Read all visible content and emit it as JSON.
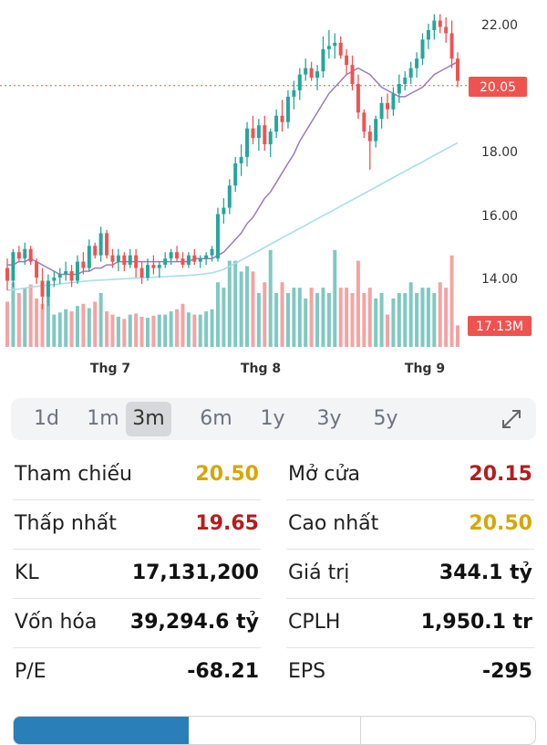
{
  "chart_data": {
    "type": "candlestick",
    "y_axis_ticks": [
      "22.00",
      "20.00",
      "18.00",
      "16.00",
      "14.00"
    ],
    "x_axis_labels": [
      "Thg 7",
      "Thg 8",
      "Thg 9"
    ],
    "ylim": [
      12.2,
      22.6
    ],
    "current_price": 20.05,
    "current_price_label": "20.05",
    "volume_label": "17.13M",
    "ohlc": [
      [
        14.3,
        14.6,
        13.6,
        13.9
      ],
      [
        13.9,
        14.9,
        13.7,
        14.8
      ],
      [
        14.8,
        15.0,
        14.5,
        14.6
      ],
      [
        14.6,
        15.1,
        14.4,
        14.9
      ],
      [
        14.9,
        15.0,
        14.4,
        14.5
      ],
      [
        14.5,
        14.6,
        13.8,
        14.0
      ],
      [
        13.9,
        14.3,
        13.0,
        13.4
      ],
      [
        13.4,
        14.1,
        13.1,
        13.9
      ],
      [
        13.9,
        14.2,
        13.7,
        14.0
      ],
      [
        14.0,
        14.3,
        13.8,
        14.1
      ],
      [
        14.1,
        14.5,
        13.9,
        14.2
      ],
      [
        14.2,
        14.4,
        13.7,
        13.9
      ],
      [
        13.9,
        14.7,
        13.8,
        14.5
      ],
      [
        14.5,
        14.8,
        14.1,
        14.3
      ],
      [
        14.3,
        15.2,
        14.2,
        15.0
      ],
      [
        15.0,
        15.1,
        14.6,
        14.7
      ],
      [
        14.7,
        15.6,
        14.5,
        15.4
      ],
      [
        15.4,
        15.5,
        14.6,
        14.7
      ],
      [
        14.7,
        14.9,
        14.3,
        14.5
      ],
      [
        14.5,
        14.9,
        14.2,
        14.7
      ],
      [
        14.7,
        14.8,
        14.2,
        14.4
      ],
      [
        14.4,
        14.9,
        14.3,
        14.7
      ],
      [
        14.7,
        14.9,
        14.0,
        14.3
      ],
      [
        14.3,
        14.5,
        13.8,
        14.0
      ],
      [
        14.0,
        14.6,
        13.9,
        14.4
      ],
      [
        14.4,
        14.7,
        14.1,
        14.3
      ],
      [
        14.3,
        14.5,
        14.0,
        14.4
      ],
      [
        14.4,
        14.8,
        14.3,
        14.6
      ],
      [
        14.6,
        14.9,
        14.4,
        14.8
      ],
      [
        14.8,
        15.0,
        14.5,
        14.6
      ],
      [
        14.6,
        14.8,
        14.3,
        14.4
      ],
      [
        14.4,
        14.8,
        14.3,
        14.7
      ],
      [
        14.7,
        14.9,
        14.4,
        14.5
      ],
      [
        14.5,
        14.7,
        14.3,
        14.6
      ],
      [
        14.6,
        14.8,
        14.4,
        14.7
      ],
      [
        14.7,
        15.0,
        14.5,
        14.9
      ],
      [
        14.6,
        16.2,
        14.5,
        16.0
      ],
      [
        16.0,
        16.5,
        15.7,
        16.2
      ],
      [
        16.2,
        17.1,
        16.0,
        16.9
      ],
      [
        16.9,
        17.8,
        16.7,
        17.6
      ],
      [
        17.6,
        18.2,
        17.2,
        17.8
      ],
      [
        17.8,
        18.9,
        17.5,
        18.7
      ],
      [
        18.7,
        19.1,
        18.2,
        18.4
      ],
      [
        18.4,
        19.0,
        18.0,
        18.8
      ],
      [
        18.8,
        19.1,
        18.0,
        18.2
      ],
      [
        18.2,
        18.7,
        17.8,
        18.6
      ],
      [
        18.6,
        19.3,
        18.4,
        19.1
      ],
      [
        19.1,
        19.6,
        18.6,
        18.9
      ],
      [
        18.9,
        19.9,
        18.7,
        19.7
      ],
      [
        19.7,
        20.2,
        19.3,
        19.9
      ],
      [
        19.9,
        20.6,
        19.6,
        20.4
      ],
      [
        20.4,
        20.9,
        20.2,
        20.6
      ],
      [
        20.6,
        20.8,
        20.2,
        20.3
      ],
      [
        20.3,
        20.7,
        19.9,
        20.5
      ],
      [
        20.5,
        21.6,
        20.3,
        21.2
      ],
      [
        21.2,
        21.8,
        20.9,
        21.3
      ],
      [
        21.3,
        21.7,
        20.9,
        21.4
      ],
      [
        21.4,
        21.6,
        20.9,
        21.0
      ],
      [
        21.0,
        21.2,
        20.4,
        20.7
      ],
      [
        20.7,
        21.0,
        19.9,
        20.1
      ],
      [
        20.1,
        20.4,
        19.0,
        19.2
      ],
      [
        19.2,
        19.3,
        18.4,
        18.6
      ],
      [
        18.6,
        18.8,
        17.4,
        18.3
      ],
      [
        18.3,
        19.1,
        18.1,
        19.0
      ],
      [
        19.0,
        19.7,
        18.7,
        19.5
      ],
      [
        19.5,
        19.8,
        19.0,
        19.3
      ],
      [
        19.3,
        20.0,
        19.1,
        19.8
      ],
      [
        19.8,
        20.4,
        19.5,
        20.1
      ],
      [
        20.1,
        20.5,
        19.9,
        20.3
      ],
      [
        20.3,
        20.8,
        20.1,
        20.6
      ],
      [
        20.6,
        21.1,
        20.3,
        20.9
      ],
      [
        20.9,
        21.7,
        20.7,
        21.5
      ],
      [
        21.5,
        22.0,
        21.2,
        21.8
      ],
      [
        21.8,
        22.3,
        21.5,
        22.1
      ],
      [
        22.1,
        22.3,
        21.7,
        21.9
      ],
      [
        21.9,
        22.2,
        21.4,
        21.7
      ],
      [
        21.7,
        22.1,
        20.6,
        20.9
      ],
      [
        20.9,
        21.1,
        20.0,
        20.2
      ]
    ],
    "volume_mm": [
      0.42,
      0.6,
      0.5,
      0.55,
      0.58,
      0.45,
      0.4,
      0.52,
      0.3,
      0.32,
      0.35,
      0.33,
      0.38,
      0.4,
      0.36,
      0.42,
      0.5,
      0.33,
      0.3,
      0.28,
      0.26,
      0.3,
      0.31,
      0.28,
      0.27,
      0.29,
      0.3,
      0.3,
      0.33,
      0.35,
      0.4,
      0.32,
      0.3,
      0.3,
      0.33,
      0.35,
      0.6,
      0.55,
      0.8,
      0.8,
      0.7,
      0.75,
      0.7,
      0.5,
      0.6,
      0.9,
      0.5,
      0.6,
      0.5,
      0.55,
      0.55,
      0.45,
      0.55,
      0.5,
      0.55,
      0.5,
      0.9,
      0.55,
      0.55,
      0.5,
      0.8,
      0.5,
      0.55,
      0.45,
      0.5,
      0.3,
      0.45,
      0.5,
      0.5,
      0.6,
      0.5,
      0.55,
      0.55,
      0.5,
      0.6,
      0.55,
      0.85,
      0.2
    ],
    "ma20": [
      14.4,
      14.4,
      14.5,
      14.5,
      14.6,
      14.5,
      14.4,
      14.3,
      14.2,
      14.1,
      14.1,
      14.1,
      14.1,
      14.2,
      14.2,
      14.3,
      14.3,
      14.4,
      14.4,
      14.5,
      14.5,
      14.5,
      14.5,
      14.5,
      14.5,
      14.5,
      14.5,
      14.5,
      14.5,
      14.5,
      14.5,
      14.5,
      14.6,
      14.6,
      14.6,
      14.6,
      14.7,
      14.8,
      15.0,
      15.2,
      15.4,
      15.7,
      15.9,
      16.2,
      16.5,
      16.7,
      17.0,
      17.3,
      17.6,
      17.9,
      18.3,
      18.6,
      18.9,
      19.2,
      19.5,
      19.8,
      20.0,
      20.2,
      20.4,
      20.5,
      20.6,
      20.5,
      20.4,
      20.2,
      20.0,
      19.9,
      19.8,
      19.7,
      19.7,
      19.8,
      19.9,
      20.0,
      20.2,
      20.4,
      20.5,
      20.6,
      20.7,
      20.8
    ],
    "ma50": [
      13.6,
      13.62,
      13.64,
      13.67,
      13.7,
      13.72,
      13.74,
      13.76,
      13.78,
      13.8,
      13.82,
      13.84,
      13.86,
      13.88,
      13.9,
      13.91,
      13.92,
      13.93,
      13.94,
      13.95,
      13.96,
      13.97,
      13.98,
      13.99,
      14.0,
      14.01,
      14.02,
      14.03,
      14.04,
      14.05,
      14.06,
      14.07,
      14.08,
      14.1,
      14.12,
      14.15,
      14.2,
      14.26,
      14.35,
      14.45,
      14.55,
      14.65,
      14.75,
      14.85,
      14.95,
      15.05,
      15.15,
      15.25,
      15.35,
      15.45,
      15.55,
      15.65,
      15.75,
      15.85,
      15.95,
      16.05,
      16.15,
      16.25,
      16.35,
      16.45,
      16.55,
      16.65,
      16.75,
      16.85,
      16.95,
      17.05,
      17.15,
      17.25,
      17.35,
      17.45,
      17.55,
      17.65,
      17.75,
      17.85,
      17.95,
      18.05,
      18.15,
      18.25
    ]
  },
  "timeframe_tabs": [
    "1d",
    "1m",
    "3m",
    "6m",
    "1y",
    "3y",
    "5y"
  ],
  "active_tab": "3m",
  "stats": {
    "tham_chieu_label": "Tham chiếu",
    "tham_chieu_value": "20.50",
    "mo_cua_label": "Mở cửa",
    "mo_cua_value": "20.15",
    "thap_nhat_label": "Thấp nhất",
    "thap_nhat_value": "19.65",
    "cao_nhat_label": "Cao nhất",
    "cao_nhat_value": "20.50",
    "kl_label": "KL",
    "kl_value": "17,131,200",
    "gia_tri_label": "Giá trị",
    "gia_tri_value": "344.1 tỷ",
    "von_hoa_label": "Vốn hóa",
    "von_hoa_value": "39,294.6 tỷ",
    "cplh_label": "CPLH",
    "cplh_value": "1,950.1 tr",
    "pe_label": "P/E",
    "pe_value": "-68.21",
    "eps_label": "EPS",
    "eps_value": "-295"
  },
  "colors": {
    "up": "#26a69a",
    "down": "#ef5350",
    "up_vol": "#7fc9c1",
    "down_vol": "#f4a3a3",
    "ma20": "#9c7bb5",
    "ma50": "#a9dde8",
    "price_tag": "#ef5350",
    "value_yellow": "#d8a600",
    "value_red": "#b71c1c"
  }
}
